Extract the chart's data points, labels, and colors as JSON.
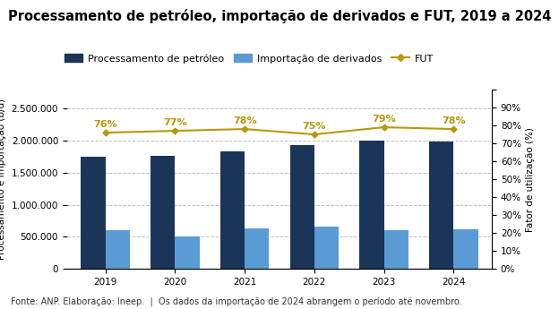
{
  "title": "Processamento de petróleo, importação de derivados e FUT, 2019 a 2024",
  "years": [
    2019,
    2020,
    2021,
    2022,
    2023,
    2024
  ],
  "processamento": [
    1750000,
    1770000,
    1830000,
    1940000,
    2010000,
    1990000
  ],
  "importacao": [
    600000,
    500000,
    630000,
    660000,
    600000,
    615000
  ],
  "fut": [
    0.76,
    0.77,
    0.78,
    0.75,
    0.79,
    0.78
  ],
  "fut_labels": [
    "76%",
    "77%",
    "78%",
    "75%",
    "79%",
    "78%"
  ],
  "bar_color_proc": "#1a3558",
  "bar_color_imp": "#5b9bd5",
  "line_color": "#b8980a",
  "ylabel_left": "Processamento e importação (b/d)",
  "ylabel_right": "Fator de utilização (%)",
  "ylim_left": [
    0,
    2800000
  ],
  "ylim_right": [
    0,
    1.0
  ],
  "yticks_left": [
    0,
    500000,
    1000000,
    1500000,
    2000000,
    2500000
  ],
  "yticks_right": [
    0,
    0.1,
    0.2,
    0.3,
    0.4,
    0.5,
    0.6,
    0.7,
    0.8,
    0.9,
    1.0
  ],
  "ytick_labels_right": [
    "0%",
    "10%",
    "20%",
    "30%",
    "40%",
    "50%",
    "60%",
    "70%",
    "80%",
    "90%",
    ""
  ],
  "ytick_labels_left": [
    "0",
    "500.000",
    "1.000.000",
    "1.500.000",
    "2.000.000",
    "2.500.000"
  ],
  "legend_labels": [
    "Processamento de petróleo",
    "Importação de derivados",
    "FUT"
  ],
  "footnote": "Fonte: ANP. Elaboração: Ineep.  |  Os dados da importação de 2024 abrangem o período até novembro.",
  "background_color": "#ffffff",
  "bar_width": 0.35,
  "title_fontsize": 10.5,
  "axis_fontsize": 7.5,
  "tick_fontsize": 7.5,
  "legend_fontsize": 8,
  "footnote_fontsize": 7,
  "grid_color": "#c0c0c0",
  "fut_label_fontsize": 8
}
